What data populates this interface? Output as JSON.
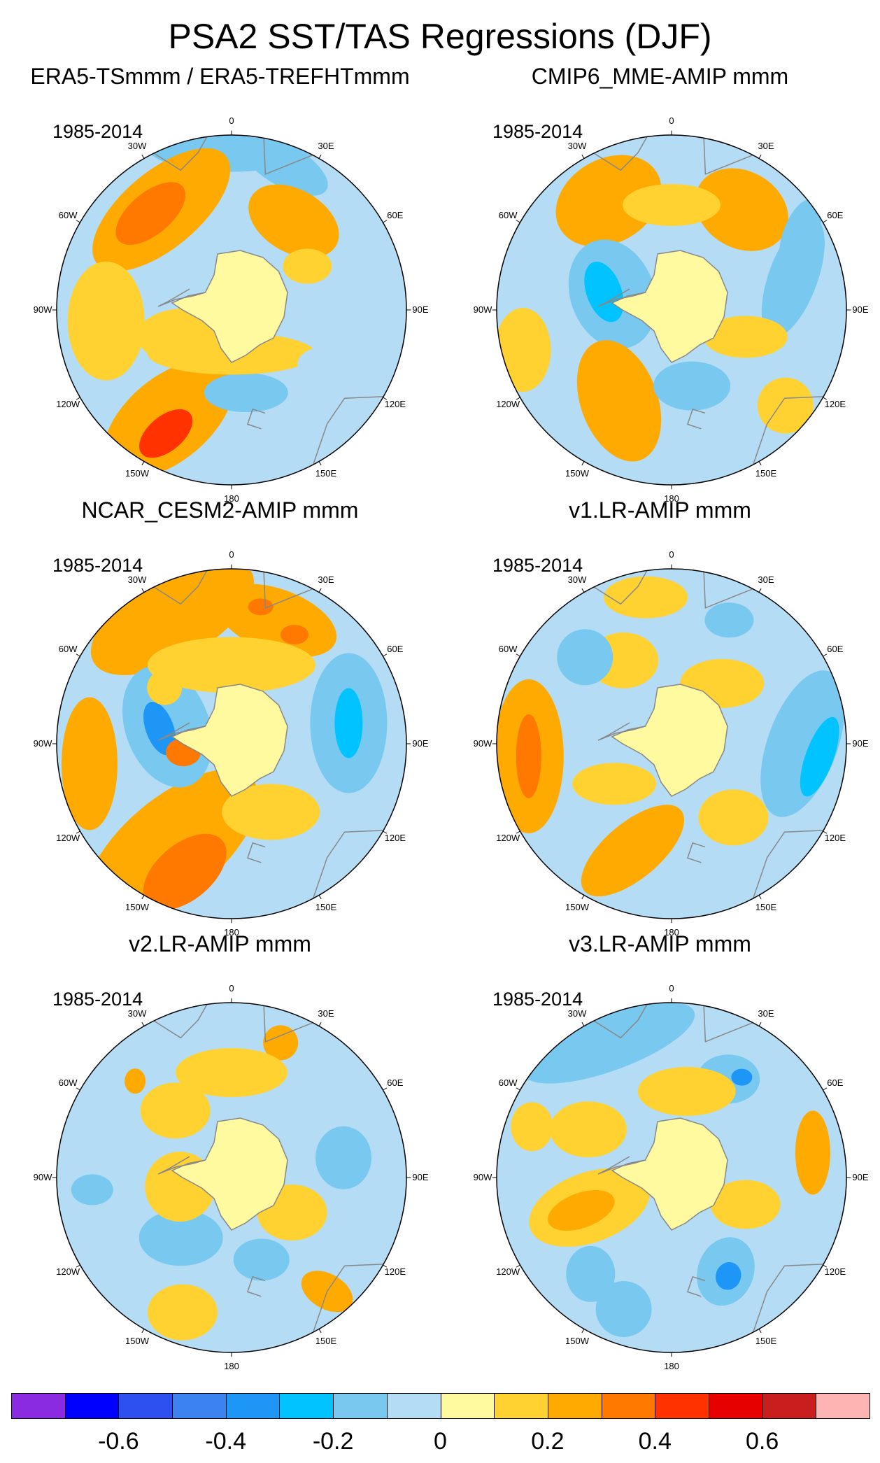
{
  "title": "PSA2 SST/TAS Regressions (DJF)",
  "panels": [
    {
      "title": "ERA5-TSmmm / ERA5-TREFHTmmm",
      "period": "1985-2014"
    },
    {
      "title": "CMIP6_MME-AMIP  mmm",
      "period": "1985-2014"
    },
    {
      "title": "NCAR_CESM2-AMIP  mmm",
      "period": "1985-2014"
    },
    {
      "title": "v1.LR-AMIP  mmm",
      "period": "1985-2014"
    },
    {
      "title": "v2.LR-AMIP  mmm",
      "period": "1985-2014"
    },
    {
      "title": "v3.LR-AMIP  mmm",
      "period": "1985-2014"
    }
  ],
  "longitude_labels": [
    "0",
    "30E",
    "60E",
    "90E",
    "120E",
    "150E",
    "180",
    "150W",
    "120W",
    "90W",
    "60W",
    "30W"
  ],
  "colorbar": {
    "colors": [
      "#8a2be2",
      "#0000ff",
      "#2d50f0",
      "#3c82f0",
      "#1e96f5",
      "#00c3ff",
      "#78c8f0",
      "#b4dcf5",
      "#fffaa0",
      "#ffd232",
      "#ffaa00",
      "#ff7800",
      "#ff3200",
      "#e60000",
      "#c81e1e",
      "#ffb4b4"
    ],
    "boundaries": [
      -0.7,
      -0.6,
      -0.5,
      -0.4,
      -0.3,
      -0.2,
      -0.1,
      0,
      0.1,
      0.2,
      0.3,
      0.4,
      0.5,
      0.6,
      0.7
    ],
    "labels": [
      "-0.6",
      "-0.4",
      "-0.2",
      "0",
      "0.2",
      "0.4",
      "0.6"
    ]
  },
  "ocean_base_color": "#b4dcf5",
  "land_color": "#fffaa0",
  "coast_color": "#888888"
}
